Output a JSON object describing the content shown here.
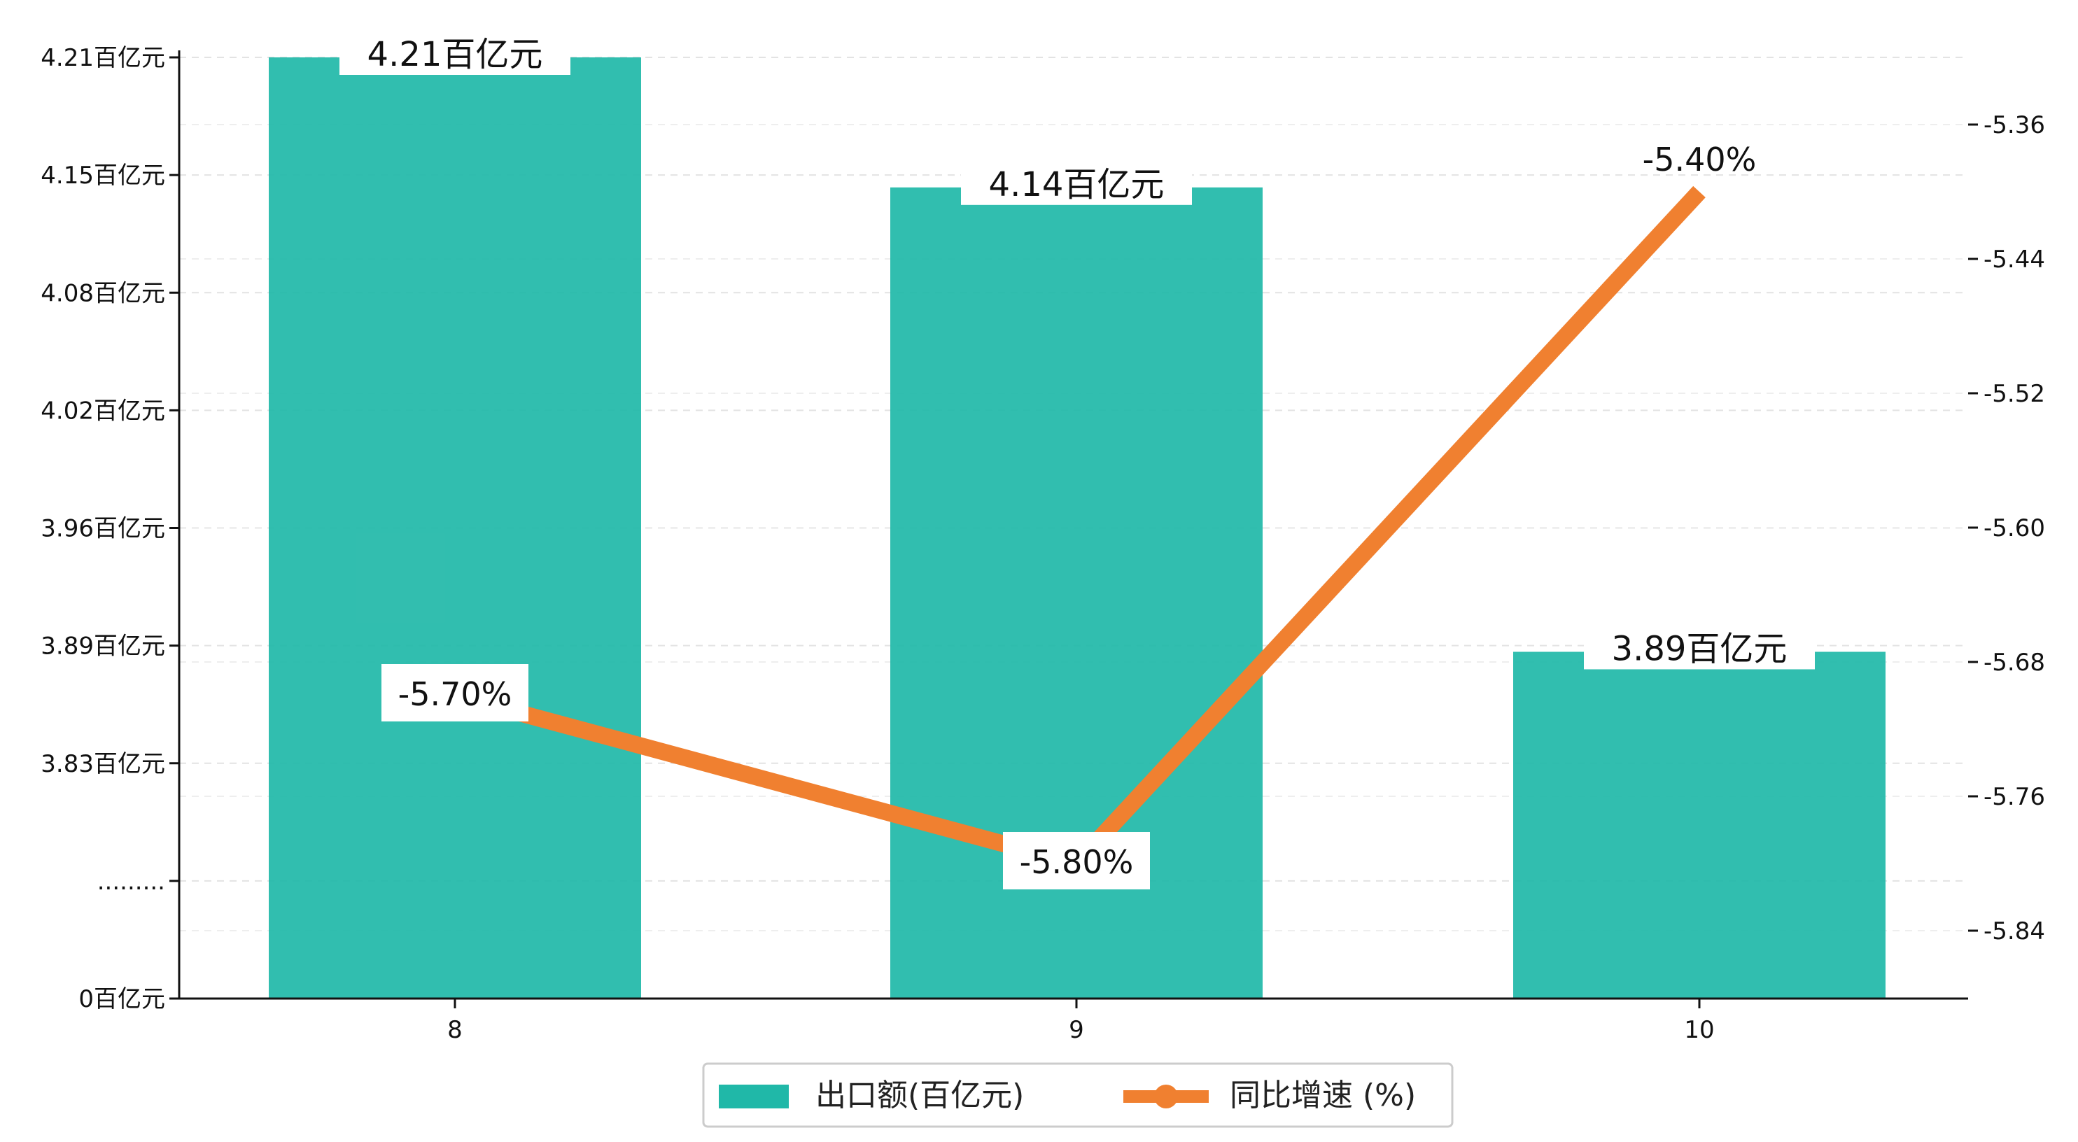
{
  "chart_data": {
    "type": "bar",
    "categories": [
      "8",
      "9",
      "10"
    ],
    "series": [
      {
        "name": "出口额(百亿元)",
        "type": "bar",
        "axis": "left",
        "values": [
          4.21,
          4.14,
          3.89
        ],
        "labels": [
          "4.21百亿元",
          "4.14百亿元",
          "3.89百亿元"
        ],
        "color": "#20B8A8"
      },
      {
        "name": "同比增速 (%)",
        "type": "line",
        "axis": "right",
        "values": [
          -5.7,
          -5.8,
          -5.4
        ],
        "labels": [
          "-5.70%",
          "-5.80%",
          "-5.40%"
        ],
        "color": "#F08030"
      }
    ],
    "left_axis": {
      "break": true,
      "ticks": [
        {
          "value": 4.21,
          "label": "4.21百亿元"
        },
        {
          "value": 4.15,
          "label": "4.15百亿元"
        },
        {
          "value": 4.08,
          "label": "4.08百亿元"
        },
        {
          "value": 4.02,
          "label": "4.02百亿元"
        },
        {
          "value": 3.96,
          "label": "3.96百亿元"
        },
        {
          "value": 3.89,
          "label": "3.89百亿元"
        },
        {
          "value": 3.83,
          "label": "3.83百亿元"
        },
        {
          "value": null,
          "label": "........."
        },
        {
          "value": 0,
          "label": "0百亿元"
        }
      ]
    },
    "right_axis": {
      "ylim": [
        -5.9,
        -5.32
      ],
      "ticks": [
        -5.36,
        -5.44,
        -5.52,
        -5.6,
        -5.68,
        -5.76,
        -5.84
      ],
      "tick_labels": [
        "-5.36",
        "-5.44",
        "-5.52",
        "-5.60",
        "-5.68",
        "-5.76",
        "-5.84"
      ]
    },
    "grid": "horizontal dashed",
    "legend": {
      "position": "bottom-center"
    }
  }
}
